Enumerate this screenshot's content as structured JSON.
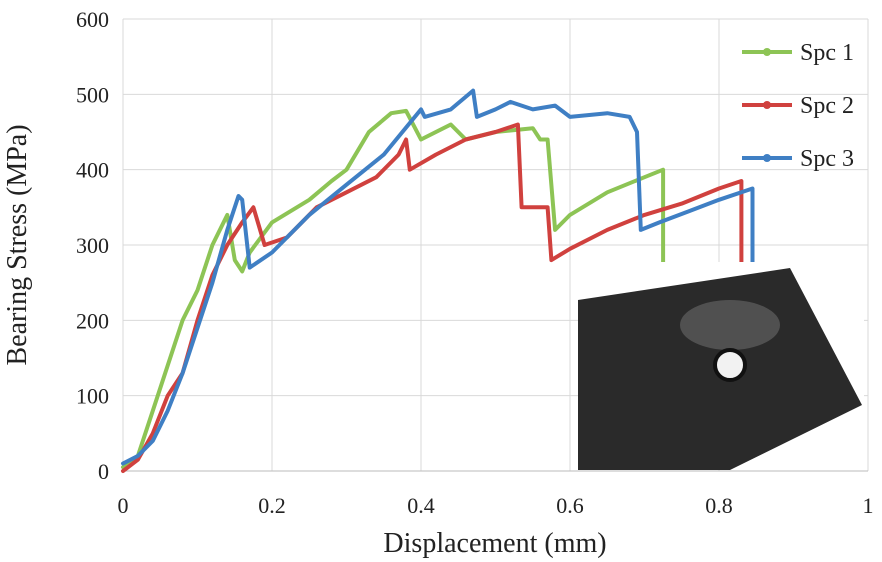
{
  "chart_data": {
    "type": "line",
    "x_label": "Displacement (mm)",
    "y_label": "Bearing Stress (MPa)",
    "xlim": [
      0,
      1
    ],
    "ylim": [
      0,
      600
    ],
    "xticks": [
      0,
      0.2,
      0.4,
      0.6,
      0.8,
      1
    ],
    "yticks": [
      0,
      100,
      200,
      300,
      400,
      500,
      600
    ],
    "grid": true,
    "legend": "top-right",
    "series": [
      {
        "name": "Spc 1",
        "color": "#8dc455",
        "x": [
          0,
          0.02,
          0.04,
          0.06,
          0.08,
          0.1,
          0.12,
          0.14,
          0.15,
          0.16,
          0.17,
          0.2,
          0.25,
          0.28,
          0.3,
          0.33,
          0.36,
          0.38,
          0.4,
          0.44,
          0.46,
          0.5,
          0.55,
          0.56,
          0.57,
          0.58,
          0.6,
          0.65,
          0.7,
          0.725,
          0.725
        ],
        "values": [
          5,
          20,
          80,
          140,
          200,
          240,
          300,
          340,
          280,
          265,
          290,
          330,
          360,
          385,
          400,
          450,
          475,
          478,
          440,
          460,
          440,
          450,
          455,
          440,
          440,
          320,
          340,
          370,
          390,
          400,
          10
        ]
      },
      {
        "name": "Spc 2",
        "color": "#d0413e",
        "x": [
          0,
          0.02,
          0.04,
          0.06,
          0.08,
          0.1,
          0.12,
          0.14,
          0.16,
          0.175,
          0.19,
          0.22,
          0.26,
          0.3,
          0.34,
          0.37,
          0.38,
          0.385,
          0.42,
          0.46,
          0.5,
          0.53,
          0.535,
          0.57,
          0.575,
          0.6,
          0.65,
          0.7,
          0.75,
          0.8,
          0.83,
          0.83
        ],
        "values": [
          0,
          15,
          50,
          100,
          130,
          200,
          260,
          300,
          330,
          350,
          300,
          310,
          350,
          370,
          390,
          420,
          440,
          400,
          420,
          440,
          450,
          460,
          350,
          350,
          280,
          295,
          320,
          340,
          355,
          375,
          385,
          10
        ]
      },
      {
        "name": "Spc 3",
        "color": "#3f7fc4",
        "x": [
          0,
          0.02,
          0.04,
          0.06,
          0.08,
          0.1,
          0.12,
          0.14,
          0.155,
          0.16,
          0.17,
          0.2,
          0.25,
          0.3,
          0.35,
          0.4,
          0.405,
          0.44,
          0.47,
          0.475,
          0.5,
          0.52,
          0.55,
          0.58,
          0.6,
          0.65,
          0.68,
          0.69,
          0.695,
          0.72,
          0.76,
          0.8,
          0.845,
          0.845
        ],
        "values": [
          10,
          20,
          40,
          80,
          130,
          190,
          250,
          320,
          365,
          360,
          270,
          290,
          340,
          380,
          420,
          480,
          470,
          480,
          505,
          470,
          480,
          490,
          480,
          485,
          470,
          475,
          470,
          450,
          320,
          330,
          345,
          360,
          375,
          10
        ]
      }
    ]
  }
}
